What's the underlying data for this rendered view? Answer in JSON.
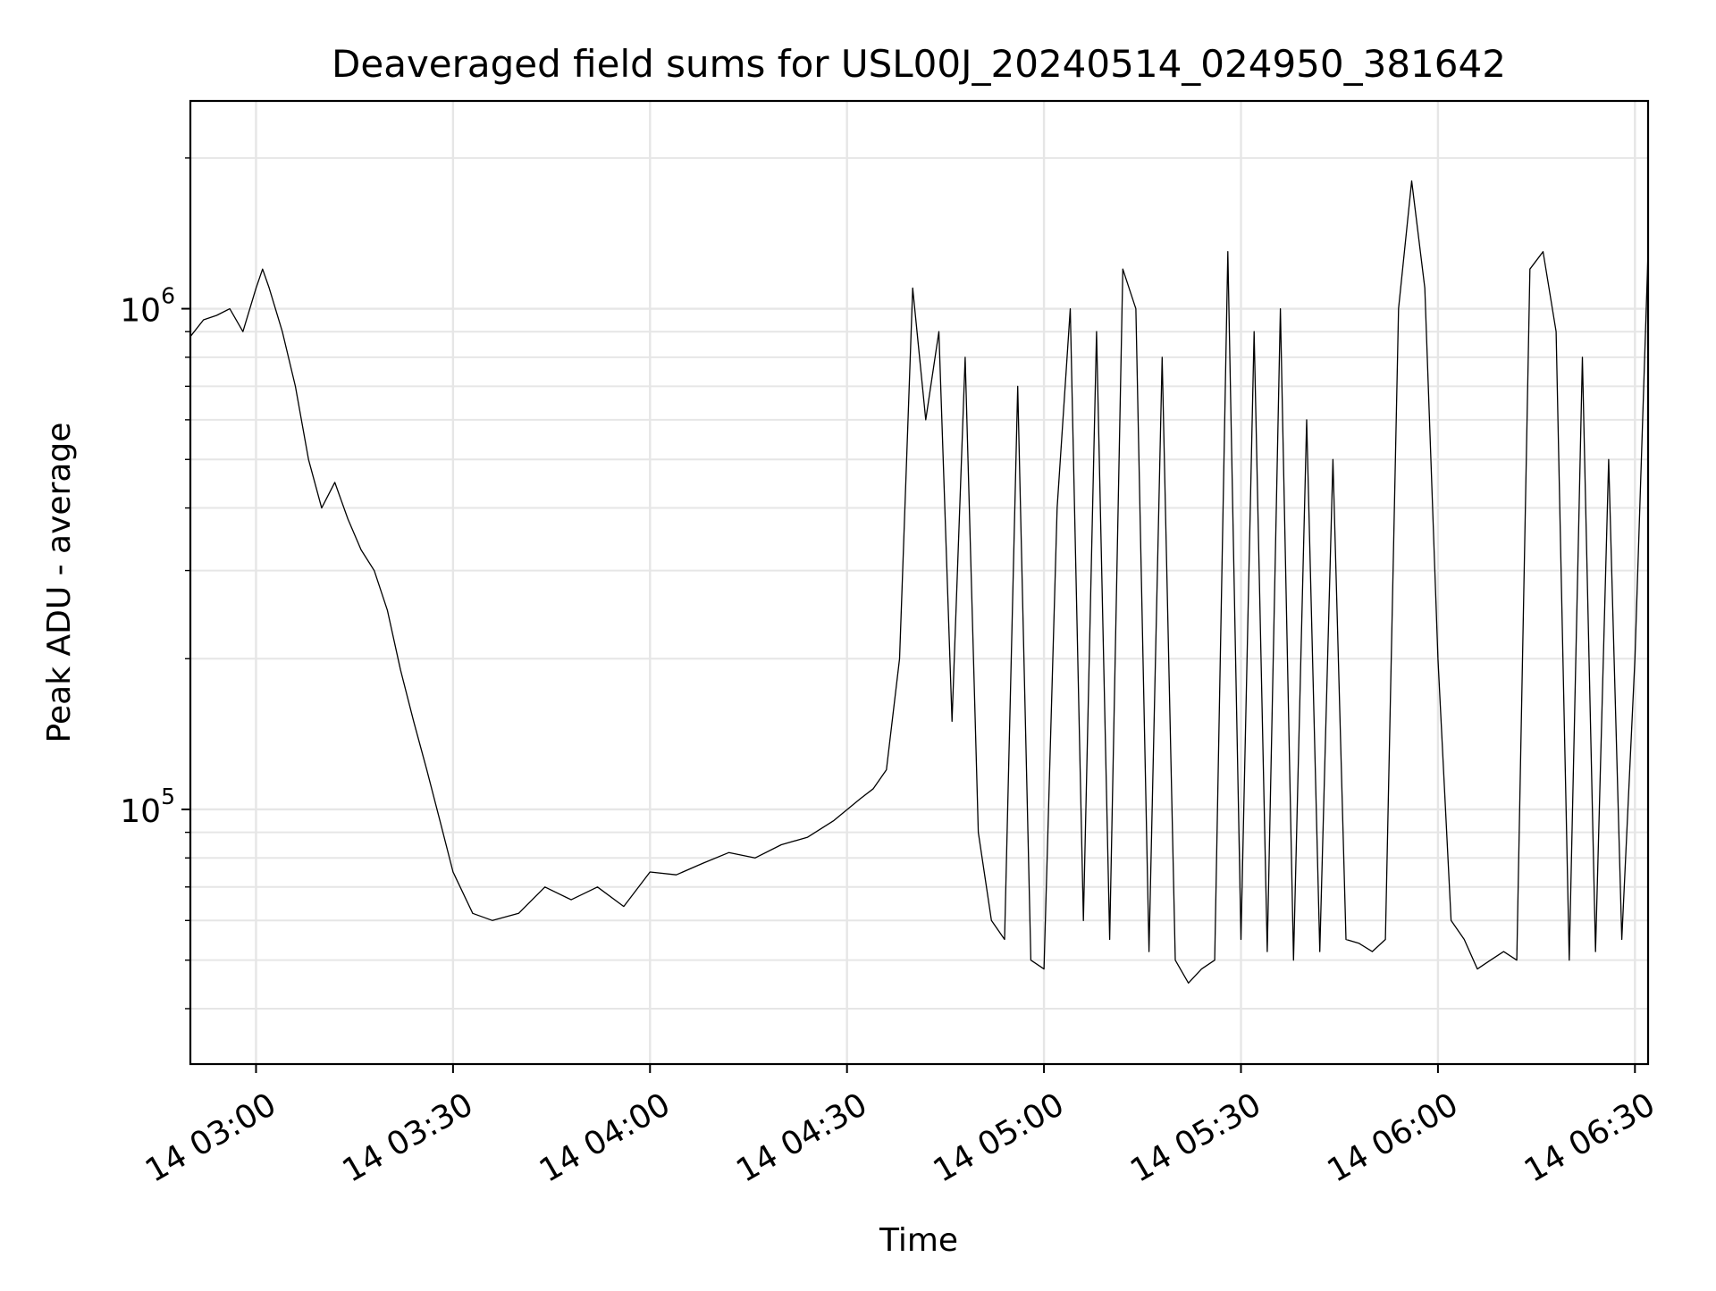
{
  "chart_data": {
    "type": "line",
    "title": "Deaveraged field sums for USL00J_20240514_024950_381642",
    "xlabel": "Time",
    "ylabel": "Peak ADU - average",
    "x_axis": {
      "kind": "time",
      "date": "2024-05-14",
      "range": [
        "02:50",
        "06:32"
      ],
      "tick_values": [
        "03:00",
        "03:30",
        "04:00",
        "04:30",
        "05:00",
        "05:30",
        "06:00",
        "06:30"
      ],
      "tick_labels": [
        "14 03:00",
        "14 03:30",
        "14 04:00",
        "14 04:30",
        "14 05:00",
        "14 05:30",
        "14 06:00",
        "14 06:30"
      ]
    },
    "y_axis": {
      "scale": "log",
      "range": [
        31000,
        2600000
      ],
      "tick_values": [
        100000,
        1000000
      ],
      "tick_labels": [
        {
          "base": "10",
          "exp": "5"
        },
        {
          "base": "10",
          "exp": "6"
        }
      ],
      "minor_ticks": [
        40000,
        50000,
        60000,
        70000,
        80000,
        90000,
        200000,
        300000,
        400000,
        500000,
        600000,
        700000,
        800000,
        900000,
        2000000
      ]
    },
    "grid": true,
    "legend": "none",
    "series": [
      {
        "color": "#000000",
        "x": [
          "02:50",
          "02:52",
          "02:54",
          "02:56",
          "02:58",
          "03:00",
          "03:01",
          "03:02",
          "03:04",
          "03:06",
          "03:08",
          "03:10",
          "03:12",
          "03:14",
          "03:16",
          "03:18",
          "03:20",
          "03:22",
          "03:24",
          "03:26",
          "03:28",
          "03:30",
          "03:33",
          "03:36",
          "03:40",
          "03:44",
          "03:48",
          "03:52",
          "03:56",
          "04:00",
          "04:04",
          "04:08",
          "04:12",
          "04:16",
          "04:20",
          "04:24",
          "04:28",
          "04:32",
          "04:34",
          "04:36",
          "04:38",
          "04:40",
          "04:42",
          "04:44",
          "04:46",
          "04:48",
          "04:50",
          "04:52",
          "04:54",
          "04:56",
          "04:58",
          "05:00",
          "05:02",
          "05:04",
          "05:06",
          "05:08",
          "05:10",
          "05:12",
          "05:14",
          "05:16",
          "05:18",
          "05:20",
          "05:22",
          "05:24",
          "05:26",
          "05:28",
          "05:30",
          "05:32",
          "05:34",
          "05:36",
          "05:38",
          "05:40",
          "05:42",
          "05:44",
          "05:46",
          "05:48",
          "05:50",
          "05:52",
          "05:54",
          "05:56",
          "05:58",
          "06:00",
          "06:02",
          "06:04",
          "06:06",
          "06:08",
          "06:10",
          "06:12",
          "06:14",
          "06:16",
          "06:18",
          "06:20",
          "06:22",
          "06:24",
          "06:26",
          "06:28",
          "06:30",
          "06:32"
        ],
        "values": [
          880000,
          950000,
          970000,
          1000000,
          900000,
          1100000,
          1200000,
          1100000,
          900000,
          700000,
          500000,
          400000,
          450000,
          380000,
          330000,
          300000,
          250000,
          190000,
          150000,
          120000,
          95000,
          75000,
          62000,
          60000,
          62000,
          70000,
          66000,
          70000,
          64000,
          75000,
          74000,
          78000,
          82000,
          80000,
          85000,
          88000,
          95000,
          105000,
          110000,
          120000,
          200000,
          1100000,
          600000,
          900000,
          150000,
          800000,
          90000,
          60000,
          55000,
          700000,
          50000,
          48000,
          400000,
          1000000,
          60000,
          900000,
          55000,
          1200000,
          1000000,
          52000,
          800000,
          50000,
          45000,
          48000,
          50000,
          1300000,
          55000,
          900000,
          52000,
          1000000,
          50000,
          600000,
          52000,
          500000,
          55000,
          54000,
          52000,
          55000,
          1000000,
          1800000,
          1100000,
          200000,
          60000,
          55000,
          48000,
          50000,
          52000,
          50000,
          1200000,
          1300000,
          900000,
          50000,
          800000,
          52000,
          500000,
          55000,
          200000,
          1300000
        ]
      }
    ]
  }
}
